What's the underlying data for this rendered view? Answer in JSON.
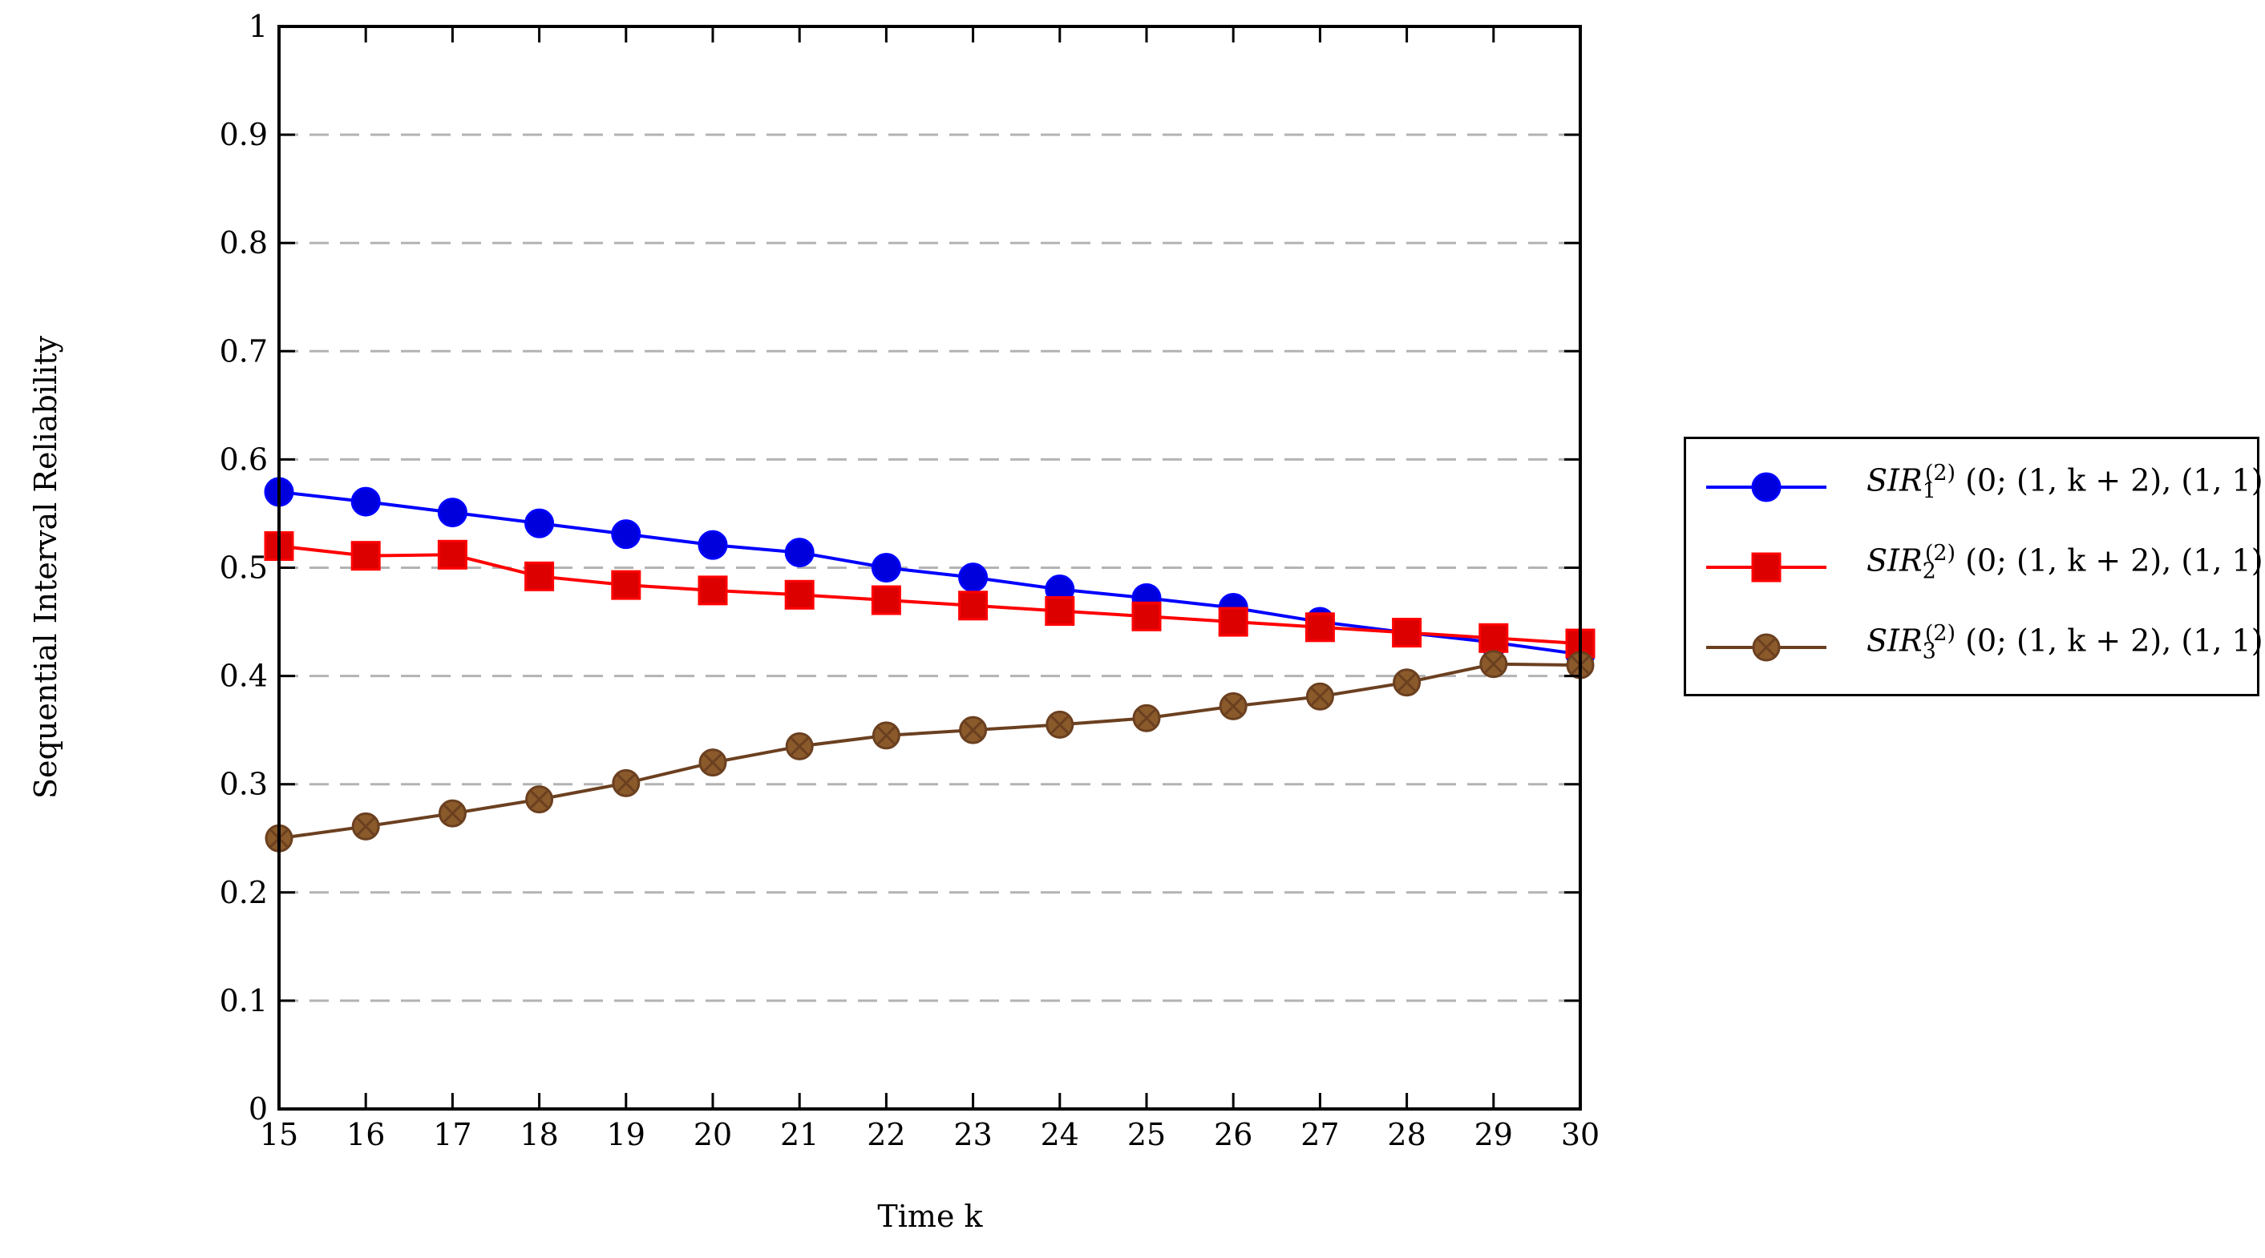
{
  "chart_data": {
    "type": "line",
    "title": "",
    "xlabel": "Time k",
    "ylabel": "Sequential Interval Reliability",
    "xlim": [
      15,
      30
    ],
    "ylim": [
      0,
      1
    ],
    "x": [
      15,
      16,
      17,
      18,
      19,
      20,
      21,
      22,
      23,
      24,
      25,
      26,
      27,
      28,
      29,
      30
    ],
    "xticks": [
      "15",
      "16",
      "17",
      "18",
      "19",
      "20",
      "21",
      "22",
      "23",
      "24",
      "25",
      "26",
      "27",
      "28",
      "29",
      "30"
    ],
    "yticks": [
      "0",
      "0.1",
      "0.2",
      "0.3",
      "0.4",
      "0.5",
      "0.6",
      "0.7",
      "0.8",
      "0.9",
      "1"
    ],
    "grid": "horizontal dashed",
    "legend_position": "outside right",
    "series": [
      {
        "name": "SIR_1^(2)(0;(1,k+2),(1,1))",
        "label": {
          "base": "SIR",
          "sub": "1",
          "sup": "(2)",
          "args": "(0; (1, k + 2), (1, 1))"
        },
        "color": "#0000ff",
        "fill": "#0000dd",
        "marker": "circle",
        "values": [
          0.57,
          0.561,
          0.551,
          0.541,
          0.531,
          0.521,
          0.514,
          0.5,
          0.491,
          0.48,
          0.472,
          0.463,
          0.45,
          0.44,
          0.431,
          0.42
        ]
      },
      {
        "name": "SIR_2^(2)(0;(1,k+2),(1,1))",
        "label": {
          "base": "SIR",
          "sub": "2",
          "sup": "(2)",
          "args": "(0; (1, k + 2), (1, 1))"
        },
        "color": "#ff0000",
        "fill": "#dd0000",
        "marker": "square",
        "values": [
          0.52,
          0.511,
          0.512,
          0.492,
          0.484,
          0.479,
          0.475,
          0.47,
          0.465,
          0.46,
          0.455,
          0.45,
          0.445,
          0.44,
          0.435,
          0.43
        ]
      },
      {
        "name": "SIR_3^(2)(0;(1,k+2),(1,1))",
        "label": {
          "base": "SIR",
          "sub": "3",
          "sup": "(2)",
          "args": "(0; (1, k + 2), (1, 1))"
        },
        "color": "#6b4020",
        "fill": "#8a5a2b",
        "marker": "circle-x",
        "values": [
          0.25,
          0.261,
          0.273,
          0.286,
          0.301,
          0.32,
          0.335,
          0.345,
          0.35,
          0.355,
          0.361,
          0.372,
          0.381,
          0.394,
          0.411,
          0.41
        ]
      }
    ]
  }
}
